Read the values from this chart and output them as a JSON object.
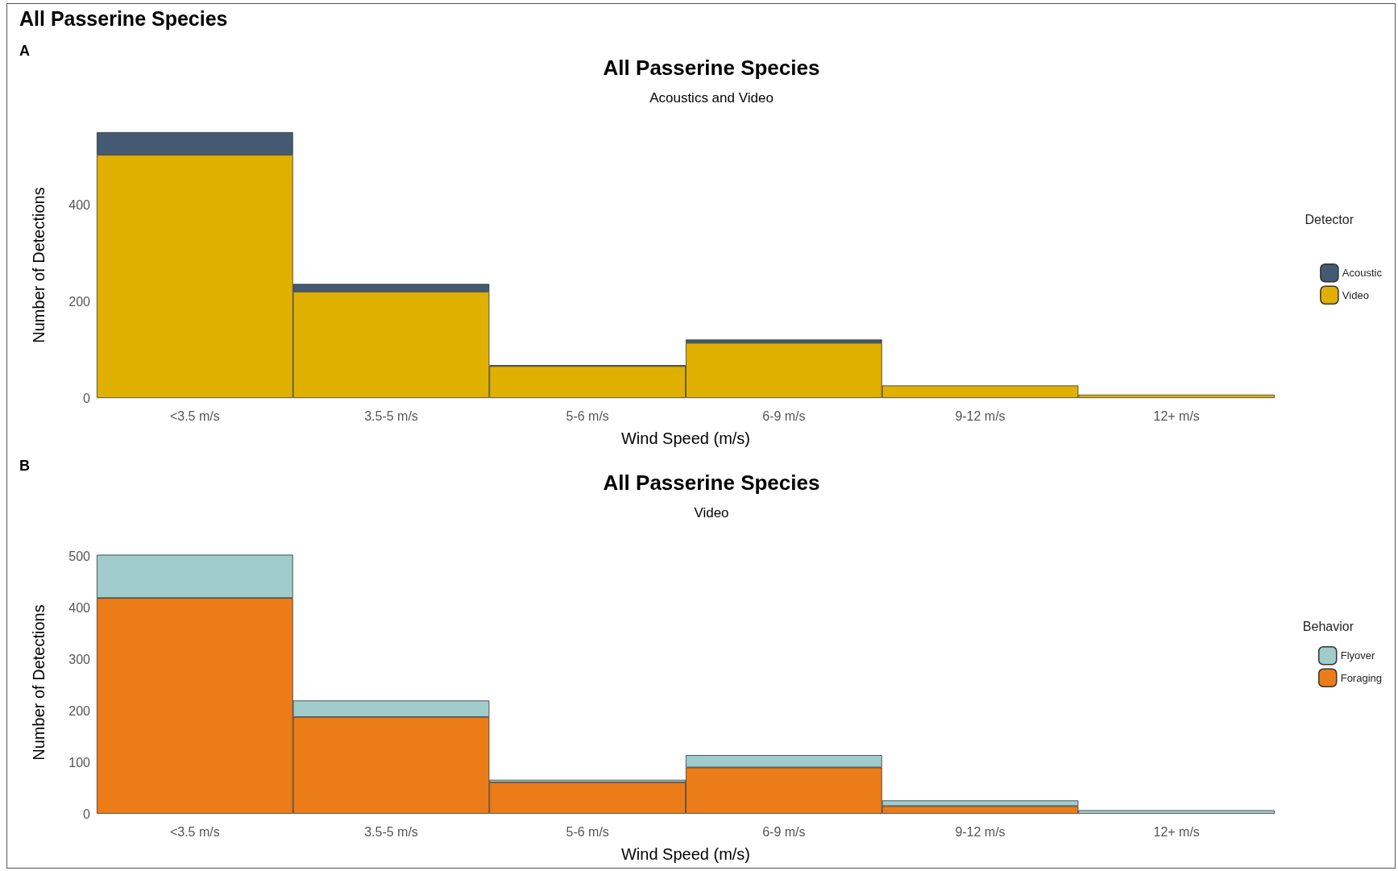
{
  "chart_data": [
    {
      "type": "bar",
      "title": "All Passerine Species",
      "subtitle": "Acoustics and Video",
      "xlabel": "Wind Speed (m/s)",
      "ylabel": "Number of Detections",
      "legend_title": "Detector",
      "annotations": [
        "All Passerine Species",
        "A"
      ],
      "categories": [
        "<3.5 m/s",
        "3.5-5 m/s",
        "5-6 m/s",
        "6-9 m/s",
        "9-12 m/s",
        "12+ m/s"
      ],
      "stacked": true,
      "series": [
        {
          "name": "Video",
          "color": "#e0b000",
          "values": [
            503,
            220,
            66,
            114,
            26,
            7
          ]
        },
        {
          "name": "Acoustic",
          "color": "#435a72",
          "values": [
            47,
            16,
            2,
            7,
            null,
            null
          ]
        }
      ],
      "ylim": [
        0,
        550
      ],
      "yticks": [
        0,
        200,
        400
      ],
      "grid": false,
      "legend": "right"
    },
    {
      "type": "bar",
      "title": "All Passerine Species",
      "subtitle": "Video",
      "xlabel": "Wind Speed (m/s)",
      "ylabel": "Number of Detections",
      "legend_title": "Behavior",
      "annotations": [
        "B"
      ],
      "categories": [
        "<3.5 m/s",
        "3.5-5 m/s",
        "5-6 m/s",
        "6-9 m/s",
        "9-12 m/s",
        "12+ m/s"
      ],
      "stacked": true,
      "series": [
        {
          "name": "Foraging",
          "color": "#ec7c18",
          "values": [
            419,
            188,
            61,
            90,
            15,
            null
          ]
        },
        {
          "name": "Flyover",
          "color": "#a0cccc",
          "values": [
            84,
            32,
            5,
            24,
            11,
            7
          ]
        }
      ],
      "ylim": [
        0,
        510
      ],
      "yticks": [
        0,
        100,
        200,
        300,
        400,
        500
      ],
      "grid": false,
      "legend": "right"
    }
  ]
}
